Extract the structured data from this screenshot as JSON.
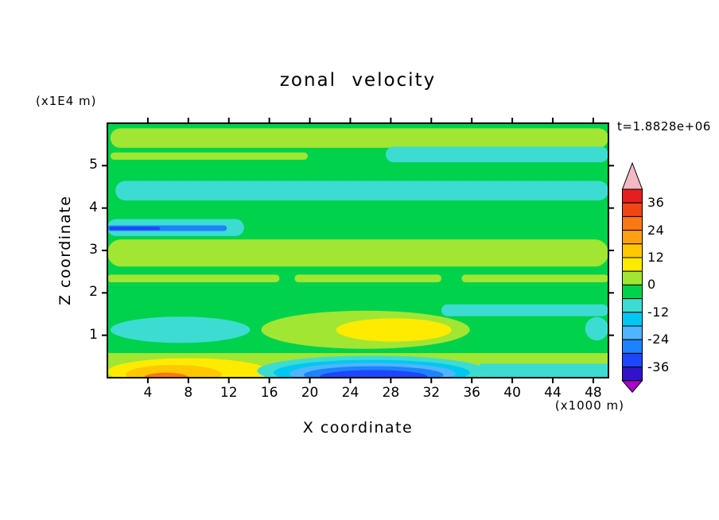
{
  "page": {
    "background": "#ffffff"
  },
  "chart_data": {
    "type": "heatmap",
    "subtype": "filled_contour",
    "title": "zonal velocity",
    "time_label": "t=1.8828e+06",
    "xlabel": "X coordinate",
    "x_unit_label": "(x1000 m)",
    "ylabel": "Z coordinate",
    "y_unit_label": "(x1E4 m)",
    "xlim": [
      0,
      49.5
    ],
    "zlim": [
      0,
      6
    ],
    "x_ticks": [
      4,
      8,
      12,
      16,
      20,
      24,
      28,
      32,
      36,
      40,
      44,
      48
    ],
    "z_ticks": [
      1,
      2,
      3,
      4,
      5
    ],
    "grid": false,
    "legend_position": "right-colorbar",
    "background": "green",
    "palette": {
      "green": "#00d24b",
      "chartreuse": "#a0e632",
      "yellow": "#ffeb00",
      "gold": "#ffc800",
      "orange": "#fa7814",
      "cyanL": "#3cdcd2",
      "cyan2": "#00c8f0",
      "lblue": "#50b4ff",
      "blue": "#1e82ff",
      "dblue": "#1e46ff",
      "indigo": "#3214c8",
      "purple": "#aa00c8",
      "pink": "#f2b8c4"
    },
    "colorbar": {
      "tick_labels": [
        "36",
        "24",
        "12",
        "0",
        "-12",
        "-24",
        "-36"
      ],
      "tick_values": [
        36,
        24,
        12,
        0,
        -12,
        -24,
        -36
      ],
      "level_step": 6,
      "range": [
        -42,
        42
      ],
      "segment_colors_top_to_bottom": [
        "#e61e1e",
        "#f04614",
        "#fa7814",
        "#ffa014",
        "#ffc800",
        "#ffeb00",
        "#a0e632",
        "#00d24b",
        "#3cdcd2",
        "#00c8f0",
        "#50b4ff",
        "#1e82ff",
        "#1e46ff",
        "#3214c8"
      ],
      "over_arrow_color": "#f2b8c4",
      "under_arrow_color": "#aa00c8"
    },
    "regions": [
      {
        "c": "chartreuse",
        "t": "band",
        "x": 0.3,
        "z": 5.42,
        "w": 49.2,
        "h": 0.46
      },
      {
        "c": "chartreuse",
        "t": "band",
        "x": 0.3,
        "z": 5.14,
        "w": 19.5,
        "h": 0.17
      },
      {
        "c": "cyanL",
        "t": "band",
        "x": 27.5,
        "z": 5.08,
        "w": 22.0,
        "h": 0.37
      },
      {
        "c": "cyanL",
        "t": "band",
        "x": 0.8,
        "z": 4.18,
        "w": 48.7,
        "h": 0.46
      },
      {
        "c": "cyanL",
        "t": "band",
        "x": 0.0,
        "z": 3.34,
        "w": 13.5,
        "h": 0.4
      },
      {
        "c": "blue",
        "t": "band",
        "x": 0.0,
        "z": 3.46,
        "w": 11.8,
        "h": 0.13
      },
      {
        "c": "dblue",
        "t": "band",
        "x": 0.2,
        "z": 3.48,
        "w": 5.0,
        "h": 0.08
      },
      {
        "c": "chartreuse",
        "t": "band",
        "x": 0.0,
        "z": 2.62,
        "w": 49.5,
        "h": 0.64
      },
      {
        "c": "chartreuse",
        "t": "band",
        "x": 0.0,
        "z": 2.25,
        "w": 17.0,
        "h": 0.18
      },
      {
        "c": "chartreuse",
        "t": "band",
        "x": 18.5,
        "z": 2.25,
        "w": 14.5,
        "h": 0.18
      },
      {
        "c": "chartreuse",
        "t": "band",
        "x": 35.0,
        "z": 2.25,
        "w": 14.5,
        "h": 0.18
      },
      {
        "c": "cyanL",
        "t": "band",
        "x": 33.0,
        "z": 1.45,
        "w": 16.5,
        "h": 0.28
      },
      {
        "c": "cyanL",
        "t": "blob",
        "x": 0.3,
        "z": 0.82,
        "w": 13.8,
        "h": 0.62
      },
      {
        "c": "chartreuse",
        "t": "blob",
        "x": 15.2,
        "z": 0.68,
        "w": 20.6,
        "h": 0.9
      },
      {
        "c": "yellow",
        "t": "blob",
        "x": 22.6,
        "z": 0.85,
        "w": 11.4,
        "h": 0.55
      },
      {
        "c": "chartreuse",
        "t": "rect",
        "x": 0.0,
        "z": 0.0,
        "w": 49.5,
        "h": 0.58
      },
      {
        "c": "yellow",
        "t": "blob",
        "x": 0.0,
        "z": -0.18,
        "w": 16.0,
        "h": 0.64
      },
      {
        "c": "gold",
        "t": "blob",
        "x": 1.8,
        "z": -0.15,
        "w": 9.5,
        "h": 0.45
      },
      {
        "c": "orange",
        "t": "blob",
        "x": 3.6,
        "z": -0.12,
        "w": 4.4,
        "h": 0.24
      },
      {
        "c": "cyanL",
        "t": "blob",
        "x": 14.8,
        "z": -0.2,
        "w": 22.6,
        "h": 0.72
      },
      {
        "c": "cyan2",
        "t": "blob",
        "x": 16.4,
        "z": -0.18,
        "w": 19.4,
        "h": 0.6
      },
      {
        "c": "lblue",
        "t": "blob",
        "x": 18.0,
        "z": -0.15,
        "w": 16.4,
        "h": 0.5
      },
      {
        "c": "blue",
        "t": "blob",
        "x": 19.4,
        "z": -0.14,
        "w": 13.8,
        "h": 0.41
      },
      {
        "c": "dblue",
        "t": "blob",
        "x": 21.0,
        "z": -0.12,
        "w": 10.6,
        "h": 0.3
      },
      {
        "c": "cyanL",
        "t": "rect",
        "x": 36.8,
        "z": 0.0,
        "w": 12.7,
        "h": 0.33
      },
      {
        "c": "cyanL",
        "t": "blob",
        "x": 47.2,
        "z": 0.88,
        "w": 2.3,
        "h": 0.55
      }
    ]
  }
}
